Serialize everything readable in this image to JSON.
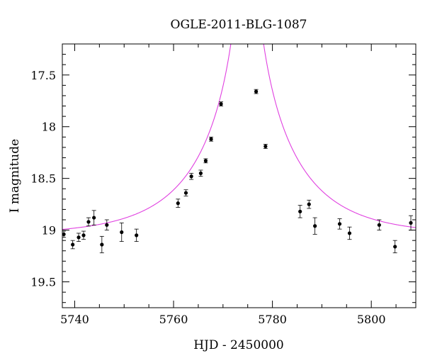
{
  "chart_data": {
    "type": "scatter",
    "title": "OGLE-2011-BLG-1087",
    "xlabel": "HJD - 2450000",
    "ylabel": "I magnitude",
    "xlim": [
      5737.5,
      5809
    ],
    "ylim": [
      19.75,
      17.2
    ],
    "y_inverted": true,
    "xticks": [
      5740,
      5760,
      5780,
      5800
    ],
    "xtick_labels": [
      "5740",
      "5760",
      "5780",
      "5800"
    ],
    "yticks": [
      17.5,
      18,
      18.5,
      19,
      19.5
    ],
    "ytick_labels": [
      "17.5",
      "18",
      "18.5",
      "19",
      "19.5"
    ],
    "grid": false,
    "model_curve": {
      "color": "#e040e0",
      "baseline_mag": 19.05,
      "t0": 5774.9,
      "tE": 18,
      "u0": 0.004
    },
    "series": [
      {
        "color": "#000000",
        "points": [
          {
            "x": 5737.8,
            "y": 19.04,
            "err": 0.03
          },
          {
            "x": 5739.6,
            "y": 19.14,
            "err": 0.04
          },
          {
            "x": 5740.8,
            "y": 19.07,
            "err": 0.04
          },
          {
            "x": 5741.8,
            "y": 19.05,
            "err": 0.04
          },
          {
            "x": 5742.8,
            "y": 18.92,
            "err": 0.04
          },
          {
            "x": 5743.9,
            "y": 18.88,
            "err": 0.07
          },
          {
            "x": 5745.5,
            "y": 19.14,
            "err": 0.08
          },
          {
            "x": 5746.5,
            "y": 18.95,
            "err": 0.05
          },
          {
            "x": 5749.5,
            "y": 19.02,
            "err": 0.09
          },
          {
            "x": 5752.5,
            "y": 19.05,
            "err": 0.06
          },
          {
            "x": 5760.9,
            "y": 18.74,
            "err": 0.04
          },
          {
            "x": 5762.5,
            "y": 18.64,
            "err": 0.03
          },
          {
            "x": 5763.6,
            "y": 18.48,
            "err": 0.03
          },
          {
            "x": 5765.5,
            "y": 18.45,
            "err": 0.03
          },
          {
            "x": 5766.5,
            "y": 18.33,
            "err": 0.02
          },
          {
            "x": 5767.6,
            "y": 18.12,
            "err": 0.02
          },
          {
            "x": 5769.6,
            "y": 17.78,
            "err": 0.02
          },
          {
            "x": 5776.7,
            "y": 17.66,
            "err": 0.02
          },
          {
            "x": 5778.6,
            "y": 18.19,
            "err": 0.02
          },
          {
            "x": 5785.6,
            "y": 18.82,
            "err": 0.06
          },
          {
            "x": 5787.4,
            "y": 18.75,
            "err": 0.04
          },
          {
            "x": 5788.6,
            "y": 18.96,
            "err": 0.08
          },
          {
            "x": 5793.6,
            "y": 18.94,
            "err": 0.05
          },
          {
            "x": 5795.6,
            "y": 19.03,
            "err": 0.06
          },
          {
            "x": 5801.6,
            "y": 18.95,
            "err": 0.05
          },
          {
            "x": 5804.8,
            "y": 19.16,
            "err": 0.06
          },
          {
            "x": 5808.0,
            "y": 18.93,
            "err": 0.07
          }
        ]
      }
    ]
  }
}
